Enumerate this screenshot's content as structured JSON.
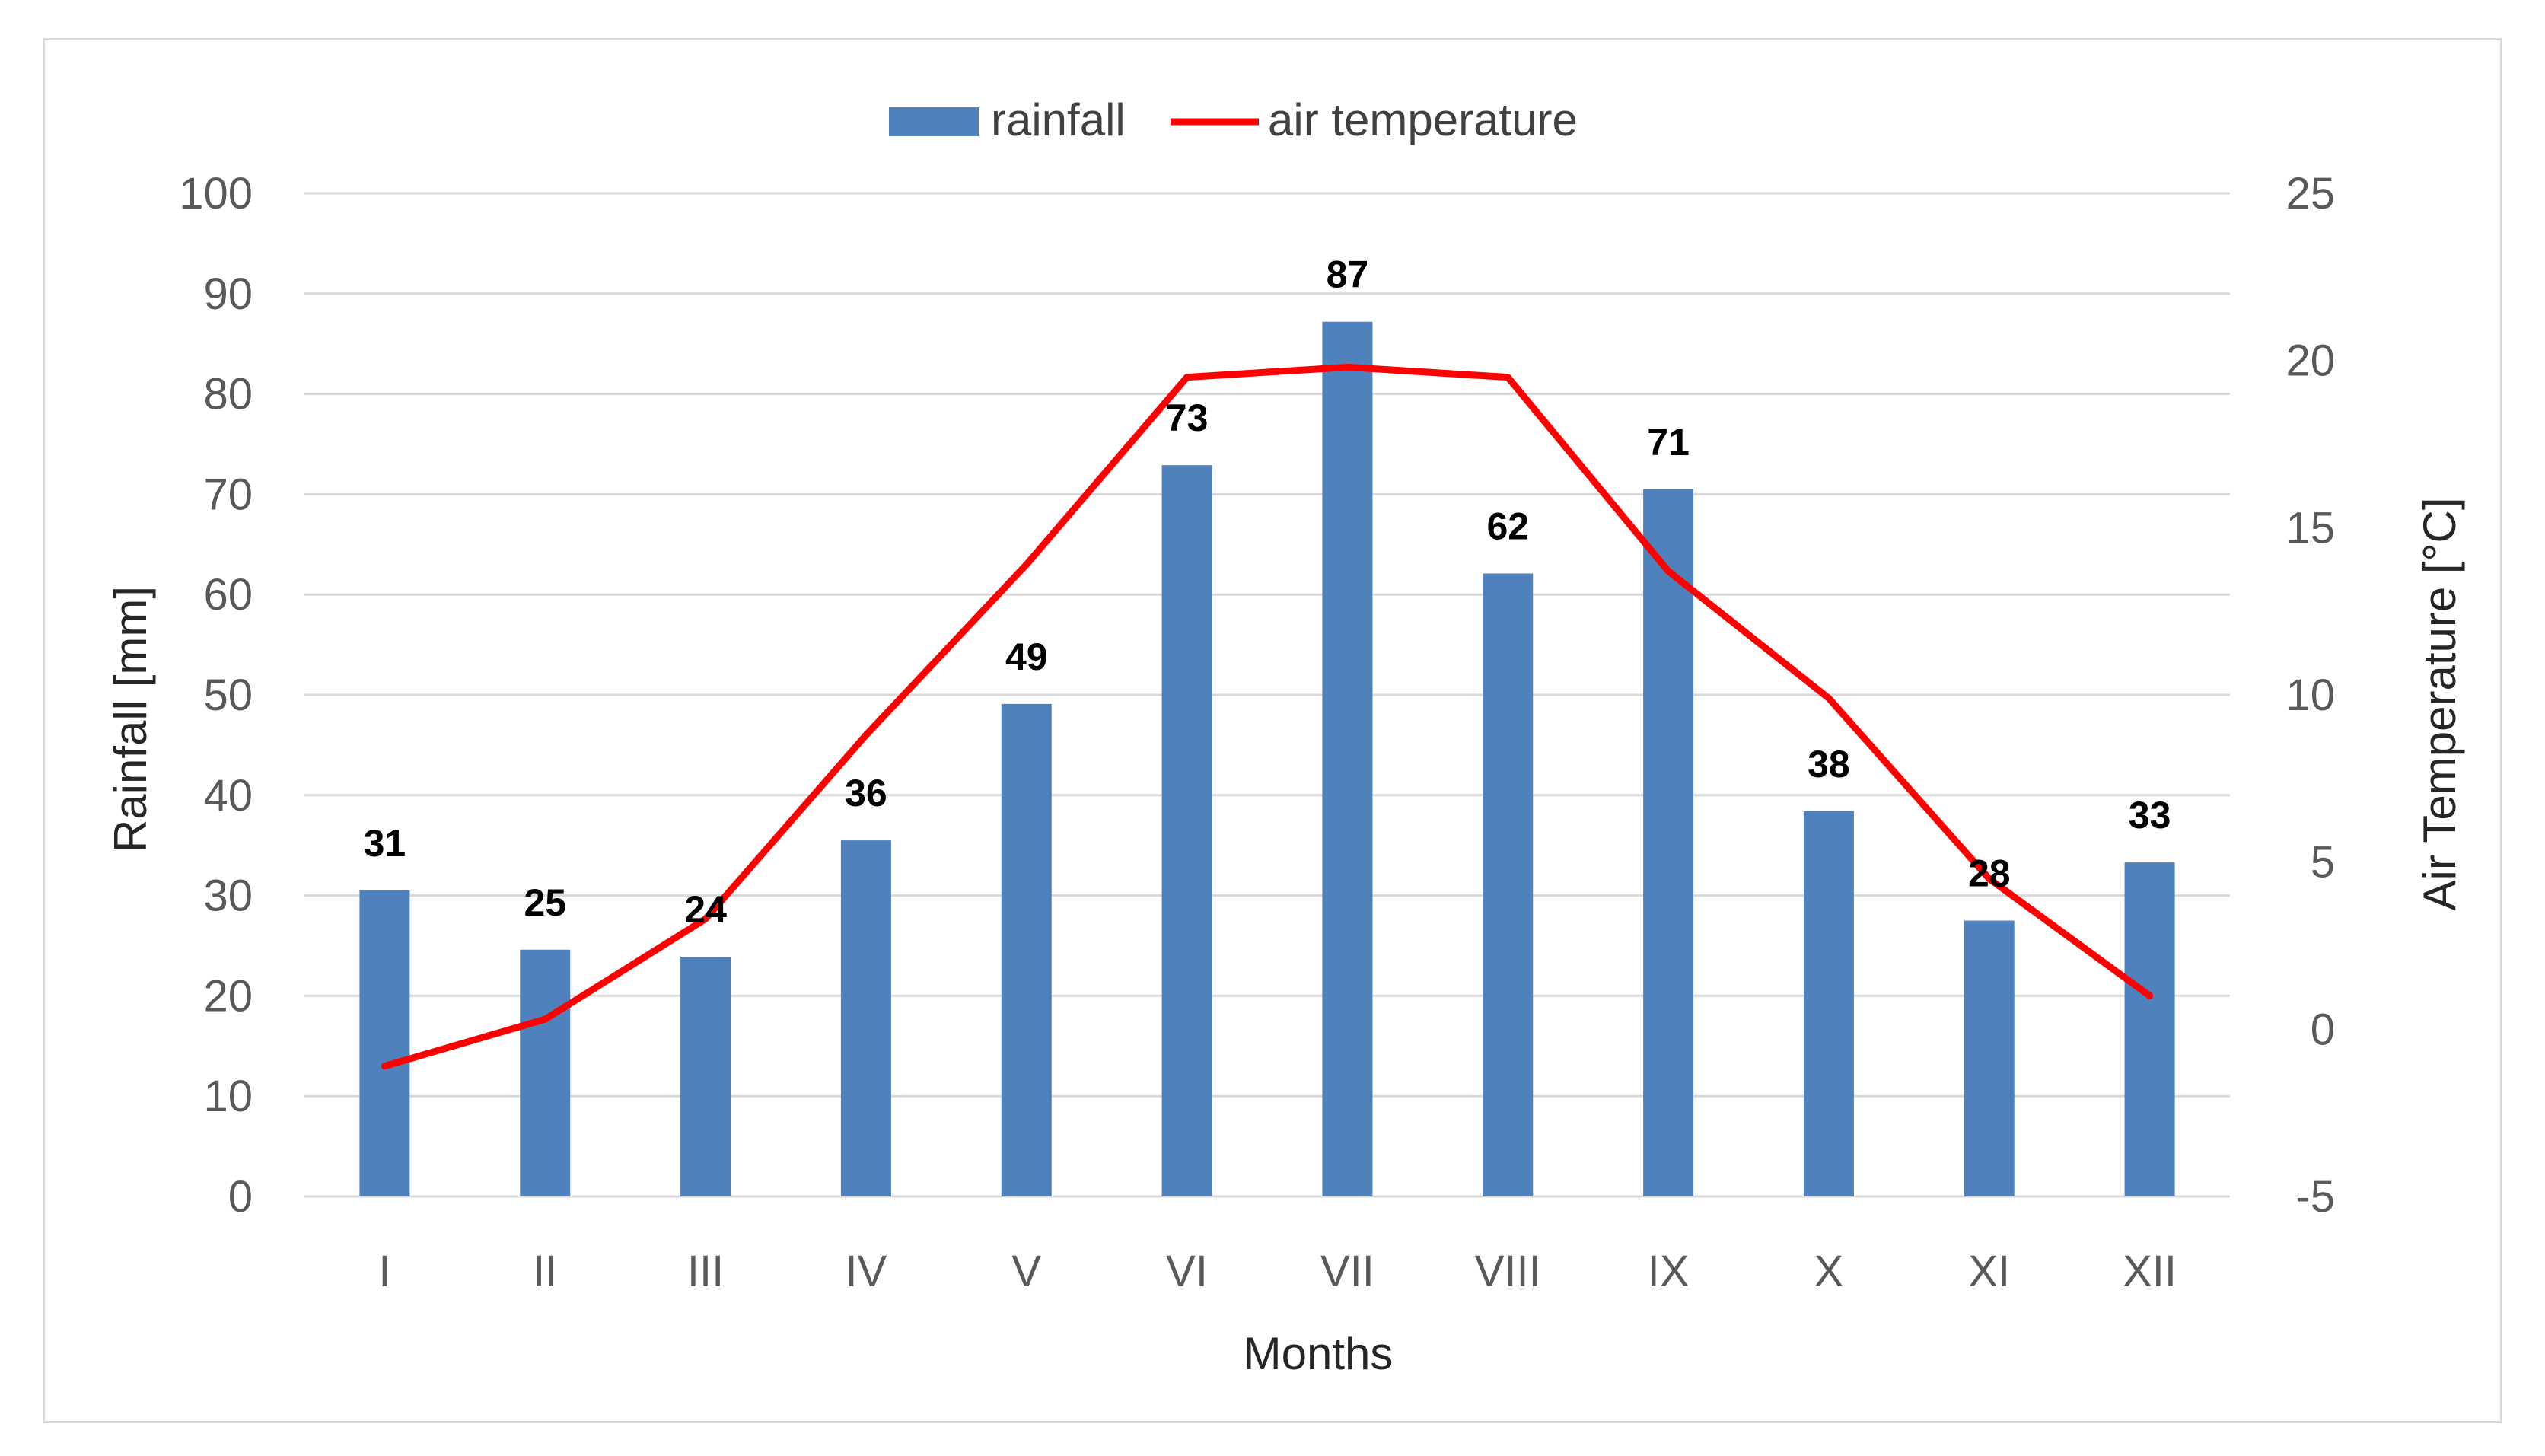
{
  "chart_data": {
    "type": "bar+line",
    "categories": [
      "I",
      "II",
      "III",
      "IV",
      "V",
      "VI",
      "VII",
      "VIII",
      "IX",
      "X",
      "XI",
      "XII"
    ],
    "series": [
      {
        "name": "rainfall",
        "type": "bar",
        "axis": "left",
        "color": "#4f81bd",
        "values": [
          30.5,
          24.6,
          23.9,
          35.5,
          49.1,
          72.9,
          87.2,
          62.1,
          70.5,
          38.4,
          27.5,
          33.3
        ],
        "labels": [
          "31",
          "25",
          "24",
          "36",
          "49",
          "73",
          "87",
          "62",
          "71",
          "38",
          "28",
          "33"
        ]
      },
      {
        "name": "air temperature",
        "type": "line",
        "axis": "right",
        "color": "#ff0000",
        "values": [
          -1.1,
          0.3,
          3.3,
          8.8,
          13.9,
          19.5,
          19.8,
          19.5,
          13.7,
          9.9,
          4.5,
          1.0
        ]
      }
    ],
    "xlabel": "Months",
    "ylabel": "Rainfall [mm]",
    "y2label": "Air Temperature [°C]",
    "ylim": [
      0,
      100
    ],
    "yticks": [
      "0",
      "10",
      "20",
      "30",
      "40",
      "50",
      "60",
      "70",
      "80",
      "90",
      "100"
    ],
    "y2lim": [
      -5,
      25
    ],
    "y2ticks": [
      "-5",
      "0",
      "5",
      "10",
      "15",
      "20",
      "25"
    ],
    "grid": true,
    "legend": "top-center"
  }
}
